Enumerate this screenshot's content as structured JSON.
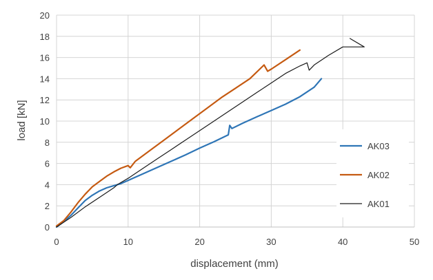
{
  "chart_data": {
    "type": "line",
    "title": "",
    "xlabel": "displacement (mm)",
    "ylabel": "load [kN]",
    "xlim": [
      0,
      50
    ],
    "ylim": [
      0,
      20
    ],
    "x_ticks": [
      "0",
      "10",
      "20",
      "30",
      "40",
      "50"
    ],
    "y_ticks": [
      "0",
      "2",
      "4",
      "6",
      "8",
      "10",
      "12",
      "14",
      "16",
      "18",
      "20"
    ],
    "grid": true,
    "legend_position": "right",
    "series": [
      {
        "name": "AK03",
        "color": "#2e75b6",
        "points": [
          [
            0,
            0
          ],
          [
            1,
            0.5
          ],
          [
            2,
            1.1
          ],
          [
            3,
            1.8
          ],
          [
            4,
            2.5
          ],
          [
            5,
            3.0
          ],
          [
            6,
            3.4
          ],
          [
            7,
            3.7
          ],
          [
            8,
            3.9
          ],
          [
            9,
            4.1
          ],
          [
            10,
            4.4
          ],
          [
            12,
            5.0
          ],
          [
            14,
            5.6
          ],
          [
            16,
            6.2
          ],
          [
            18,
            6.8
          ],
          [
            20,
            7.45
          ],
          [
            22,
            8.05
          ],
          [
            24,
            8.7
          ],
          [
            24.2,
            9.6
          ],
          [
            24.5,
            9.3
          ],
          [
            26,
            9.8
          ],
          [
            28,
            10.4
          ],
          [
            30,
            11.0
          ],
          [
            32,
            11.6
          ],
          [
            34,
            12.3
          ],
          [
            36,
            13.2
          ],
          [
            37,
            14.0
          ]
        ]
      },
      {
        "name": "AK02",
        "color": "#c55a11",
        "points": [
          [
            0,
            0.1
          ],
          [
            1,
            0.6
          ],
          [
            2,
            1.4
          ],
          [
            3,
            2.3
          ],
          [
            4,
            3.1
          ],
          [
            5,
            3.8
          ],
          [
            6,
            4.3
          ],
          [
            7,
            4.8
          ],
          [
            8,
            5.2
          ],
          [
            9,
            5.55
          ],
          [
            10,
            5.8
          ],
          [
            10.3,
            5.6
          ],
          [
            11,
            6.2
          ],
          [
            13,
            7.2
          ],
          [
            15,
            8.2
          ],
          [
            17,
            9.2
          ],
          [
            19,
            10.2
          ],
          [
            21,
            11.2
          ],
          [
            23,
            12.2
          ],
          [
            25,
            13.1
          ],
          [
            27,
            14.0
          ],
          [
            29,
            15.3
          ],
          [
            29.5,
            14.7
          ],
          [
            30,
            14.9
          ],
          [
            32,
            15.8
          ],
          [
            34,
            16.7
          ]
        ]
      },
      {
        "name": "AK01",
        "color": "#1a1a1a",
        "points": [
          [
            0,
            0
          ],
          [
            2,
            0.9
          ],
          [
            4,
            1.9
          ],
          [
            6,
            2.8
          ],
          [
            8,
            3.7
          ],
          [
            8.5,
            4.0
          ],
          [
            10,
            4.6
          ],
          [
            12,
            5.5
          ],
          [
            14,
            6.4
          ],
          [
            16,
            7.3
          ],
          [
            18,
            8.2
          ],
          [
            20,
            9.1
          ],
          [
            22,
            10.0
          ],
          [
            24,
            10.9
          ],
          [
            26,
            11.8
          ],
          [
            28,
            12.7
          ],
          [
            30,
            13.6
          ],
          [
            32,
            14.5
          ],
          [
            34,
            15.2
          ],
          [
            35,
            15.5
          ],
          [
            35.3,
            14.8
          ],
          [
            36,
            15.3
          ],
          [
            38,
            16.2
          ],
          [
            40,
            17.0
          ],
          [
            43,
            17.0
          ],
          [
            41,
            17.8
          ]
        ]
      }
    ]
  }
}
